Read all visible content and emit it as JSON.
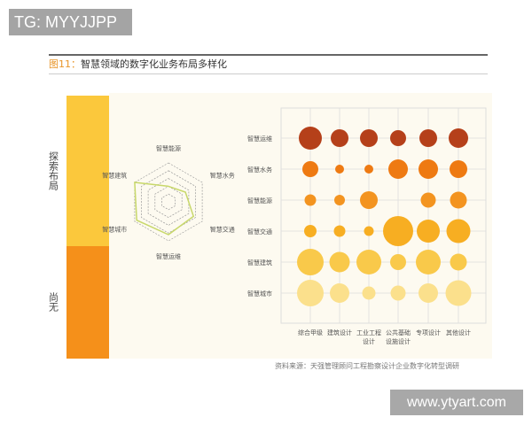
{
  "watermark_top": "TG: MYYJJPP",
  "watermark_bottom": "www.ytyart.com",
  "title": {
    "figure": "图11：",
    "text": "智慧领域的数字化业务布局多样化"
  },
  "source": "资料来源：天强管理顾问工程勘察设计企业数字化转型调研",
  "legend_bar": [
    {
      "label": "探索布局",
      "color": "#fbc83c"
    },
    {
      "label": "尚无",
      "color": "#f5901a"
    }
  ],
  "chart_data": [
    {
      "type": "radar",
      "axes": [
        "智慧能源",
        "智慧水务",
        "智慧交通",
        "智慧运维",
        "智慧城市",
        "智慧建筑"
      ],
      "rings": 5,
      "values": [
        2,
        2.5,
        3.7,
        4.2,
        4.7,
        5
      ],
      "line_color": "#c8d86a",
      "grid": "dashed hexagons"
    },
    {
      "type": "bubble",
      "rows": [
        "智慧运维",
        "智慧水务",
        "智慧能源",
        "智慧交通",
        "智慧建筑",
        "智慧城市"
      ],
      "row_colors": [
        "#b5401a",
        "#ee7a12",
        "#f39420",
        "#f7ae22",
        "#f9c94a",
        "#fbe08c"
      ],
      "columns": [
        "综合甲级",
        "建筑设计",
        "工业工程设计",
        "公共基础设施设计",
        "专项设计",
        "其他设计"
      ],
      "column_label_lines": [
        [
          "综合甲级"
        ],
        [
          "建筑设计"
        ],
        [
          "工业工程",
          "设计"
        ],
        [
          "公共基础",
          "设施设计"
        ],
        [
          "专项设计"
        ],
        [
          "其他设计"
        ]
      ],
      "relative_sizes": [
        [
          26,
          20,
          20,
          18,
          20,
          22
        ],
        [
          18,
          10,
          10,
          22,
          22,
          20
        ],
        [
          13,
          12,
          20,
          0,
          17,
          19
        ],
        [
          14,
          13,
          11,
          34,
          26,
          27
        ],
        [
          30,
          23,
          28,
          18,
          28,
          19
        ],
        [
          30,
          22,
          15,
          17,
          22,
          29
        ]
      ],
      "grid": true
    }
  ]
}
